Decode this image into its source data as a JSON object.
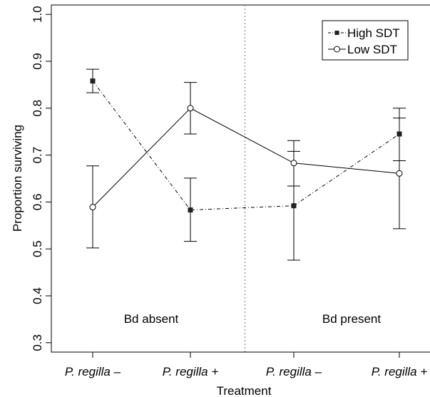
{
  "chart_data": {
    "type": "line",
    "title": "",
    "xlabel": "Treatment",
    "ylabel": "Proportion surviving",
    "ylim": [
      0.28,
      1.02
    ],
    "y_ticks": [
      "0.3",
      "0.4",
      "0.5",
      "0.6",
      "0.7",
      "0.8",
      "0.9",
      "1.0"
    ],
    "categories": [
      "P. regilla –",
      "P. regilla +",
      "P. regilla –",
      "P. regilla +"
    ],
    "region_labels": [
      "Bd absent",
      "Bd present"
    ],
    "divider_after_category": 1,
    "legend_position": "top-right",
    "series": [
      {
        "name": "High SDT",
        "marker": "filled-square",
        "line_style": "dot-dash",
        "values": [
          0.858,
          0.583,
          0.592,
          0.745
        ],
        "lower": [
          0.833,
          0.516,
          0.476,
          0.688
        ],
        "upper": [
          0.883,
          0.651,
          0.708,
          0.8
        ]
      },
      {
        "name": "Low SDT",
        "marker": "open-circle",
        "line_style": "solid",
        "values": [
          0.589,
          0.8,
          0.683,
          0.661
        ],
        "lower": [
          0.502,
          0.745,
          0.634,
          0.543
        ],
        "upper": [
          0.677,
          0.855,
          0.731,
          0.779
        ]
      }
    ],
    "grid": false
  }
}
